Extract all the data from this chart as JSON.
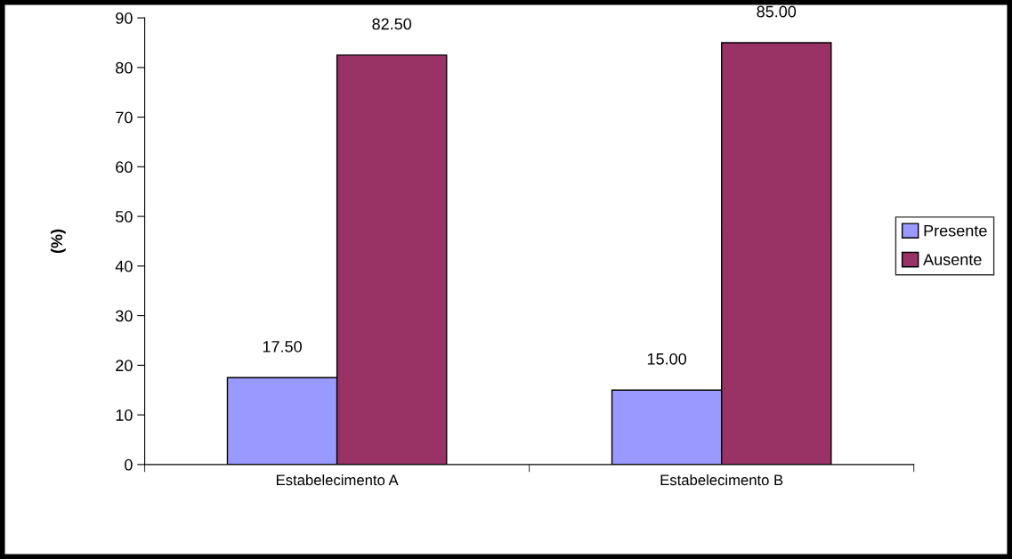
{
  "chart_data": {
    "type": "bar",
    "ylabel": "(%)",
    "categories": [
      "Estabelecimento A",
      "Estabelecimento B"
    ],
    "series": [
      {
        "name": "Presente",
        "color": "#9999ff",
        "values": [
          17.5,
          15.0
        ],
        "value_labels": [
          "17.50",
          "15.00"
        ]
      },
      {
        "name": "Ausente",
        "color": "#993366",
        "values": [
          82.5,
          85.0
        ],
        "value_labels": [
          "82.50",
          "85.00"
        ]
      }
    ],
    "ylim": [
      0,
      90
    ],
    "yticks": [
      0,
      10,
      20,
      30,
      40,
      50,
      60,
      70,
      80,
      90
    ],
    "grid": false,
    "legend": "right"
  }
}
